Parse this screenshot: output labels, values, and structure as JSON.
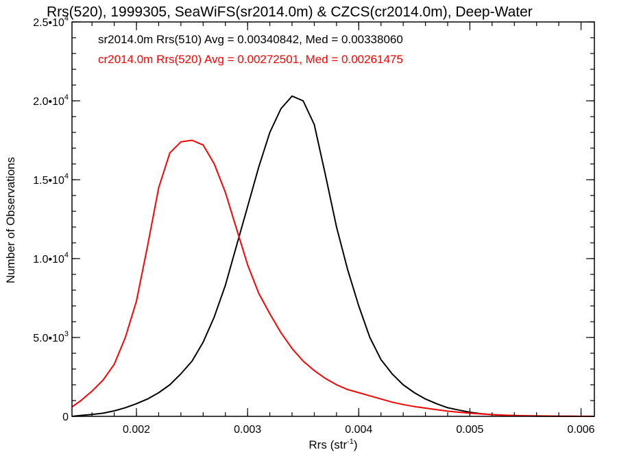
{
  "chart_data": {
    "type": "line",
    "title": "Rrs(520), 1999305, SeaWiFS(sr2014.0m) & CZCS(cr2014.0m), Deep-Water",
    "xlabel": "Rrs (str",
    "xlabel_sup": "-1",
    "xlabel_suffix": ")",
    "ylabel": "Number of Observations",
    "xlim": [
      0.00142,
      0.00612
    ],
    "ylim": [
      0,
      25000
    ],
    "grid": false,
    "x_ticks": [
      {
        "value": 0.002,
        "label": "0.002"
      },
      {
        "value": 0.003,
        "label": "0.003"
      },
      {
        "value": 0.004,
        "label": "0.004"
      },
      {
        "value": 0.005,
        "label": "0.005"
      },
      {
        "value": 0.006,
        "label": "0.006"
      }
    ],
    "y_ticks": [
      {
        "value": 0,
        "label": "0",
        "sup": ""
      },
      {
        "value": 5000,
        "label": "5.0•10",
        "sup": "3"
      },
      {
        "value": 10000,
        "label": "1.0•10",
        "sup": "4"
      },
      {
        "value": 15000,
        "label": "1.5•10",
        "sup": "4"
      },
      {
        "value": 20000,
        "label": "2.0•10",
        "sup": "4"
      },
      {
        "value": 25000,
        "label": "2.5•10",
        "sup": "4"
      }
    ],
    "annotations": [
      {
        "text": "sr2014.0m Rrs(510) Avg = 0.00340842, Med = 0.00338060",
        "color": "#000000"
      },
      {
        "text": "cr2014.0m Rrs(520) Avg = 0.00272501, Med = 0.00261475",
        "color": "#ff0000"
      }
    ],
    "series": [
      {
        "color": "#000000",
        "x": [
          0.00142,
          0.0015,
          0.0016,
          0.0017,
          0.0018,
          0.0019,
          0.002,
          0.0021,
          0.0022,
          0.0023,
          0.0024,
          0.0025,
          0.0026,
          0.0027,
          0.0028,
          0.0029,
          0.003,
          0.0031,
          0.0032,
          0.0033,
          0.0034,
          0.0035,
          0.0036,
          0.0037,
          0.0038,
          0.0039,
          0.004,
          0.0041,
          0.0042,
          0.0043,
          0.0044,
          0.0045,
          0.0046,
          0.0047,
          0.0048,
          0.0049,
          0.005,
          0.0051,
          0.0052,
          0.0053,
          0.0054,
          0.0055,
          0.0056,
          0.0057,
          0.0058,
          0.0059,
          0.006,
          0.00612
        ],
        "y": [
          0,
          60,
          120,
          200,
          350,
          550,
          800,
          1100,
          1500,
          2000,
          2700,
          3500,
          4700,
          6300,
          8300,
          10800,
          13300,
          15800,
          18000,
          19500,
          20300,
          20000,
          18500,
          15300,
          12000,
          9300,
          7000,
          5000,
          3600,
          2700,
          2000,
          1500,
          1100,
          800,
          550,
          400,
          260,
          170,
          110,
          70,
          40,
          25,
          15,
          10,
          5,
          3,
          2,
          0
        ]
      },
      {
        "color": "#ff0000",
        "x": [
          0.00142,
          0.0015,
          0.0016,
          0.0017,
          0.0018,
          0.0019,
          0.002,
          0.0021,
          0.0022,
          0.0023,
          0.0024,
          0.0025,
          0.0026,
          0.0027,
          0.0028,
          0.0029,
          0.003,
          0.0031,
          0.0032,
          0.0033,
          0.0034,
          0.0035,
          0.0036,
          0.0037,
          0.0038,
          0.0039,
          0.004,
          0.0041,
          0.0042,
          0.0043,
          0.0044,
          0.0045,
          0.0046,
          0.0047,
          0.0048,
          0.0049,
          0.005,
          0.0051,
          0.0052,
          0.0053,
          0.0054,
          0.0055,
          0.0056,
          0.0057,
          0.0058,
          0.0059,
          0.006,
          0.00612
        ],
        "y": [
          600,
          1000,
          1600,
          2300,
          3300,
          5000,
          7300,
          10800,
          14500,
          16700,
          17400,
          17500,
          17200,
          16000,
          14200,
          11900,
          9600,
          7800,
          6500,
          5300,
          4300,
          3500,
          2900,
          2400,
          2000,
          1700,
          1500,
          1300,
          1100,
          900,
          750,
          620,
          520,
          420,
          330,
          260,
          200,
          150,
          110,
          80,
          60,
          40,
          30,
          20,
          12,
          8,
          5,
          3
        ]
      }
    ]
  }
}
